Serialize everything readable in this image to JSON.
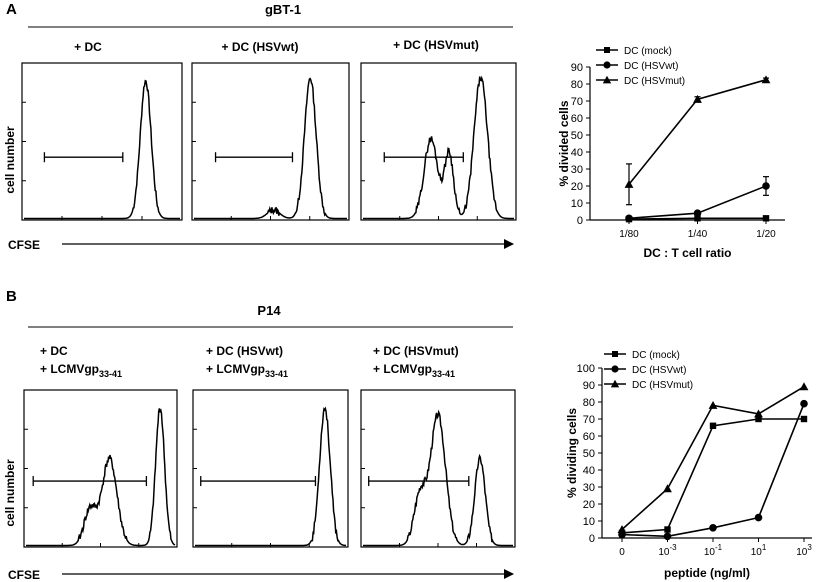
{
  "panels": {
    "a": {
      "letter": "A",
      "header": "gBT-1",
      "hist_labels": [
        "+ DC",
        "+ DC (HSVwt)",
        "+ DC (HSVmut)"
      ],
      "ylabel": "cell number",
      "xlabel": "CFSE"
    },
    "b": {
      "letter": "B",
      "header": "P14",
      "hist_labels": [
        {
          "line1": "+ DC",
          "line2": "+ LCMVgp",
          "sub": "33-41"
        },
        {
          "line1": "+ DC (HSVwt)",
          "line2": "+ LCMVgp",
          "sub": "33-41"
        },
        {
          "line1": "+ DC (HSVmut)",
          "line2": "+ LCMVgp",
          "sub": "33-41"
        }
      ],
      "ylabel": "cell number",
      "xlabel": "CFSE"
    }
  },
  "chart_data": [
    {
      "type": "line",
      "panel": "A",
      "xlabel": "DC : T cell ratio",
      "ylabel": "% divided cells",
      "categories": [
        "1/80",
        "1/40",
        "1/20"
      ],
      "ylim": [
        0,
        90
      ],
      "yticks": [
        0,
        10,
        20,
        30,
        40,
        50,
        60,
        70,
        80,
        90
      ],
      "series": [
        {
          "name": "DC (mock)",
          "marker": "square",
          "values": [
            0.5,
            1,
            1
          ]
        },
        {
          "name": "DC (HSVwt)",
          "marker": "circle",
          "values": [
            1,
            4,
            20
          ],
          "errors": [
            0,
            1,
            5.5
          ]
        },
        {
          "name": "DC (HSVmut)",
          "marker": "triangle",
          "values": [
            21,
            71,
            82.5
          ],
          "errors": [
            12,
            1.5,
            1
          ]
        }
      ]
    },
    {
      "type": "line",
      "panel": "B",
      "xlabel": "peptide (ng/ml)",
      "ylabel": "% dividing cells",
      "categories": [
        "0",
        "10-3",
        "10-1",
        "101",
        "103"
      ],
      "tick_labels": [
        {
          "base": "0",
          "exp": ""
        },
        {
          "base": "10",
          "exp": "-3"
        },
        {
          "base": "10",
          "exp": "-1"
        },
        {
          "base": "10",
          "exp": "1"
        },
        {
          "base": "10",
          "exp": "3"
        }
      ],
      "ylim": [
        0,
        100
      ],
      "yticks": [
        0,
        10,
        20,
        30,
        40,
        50,
        60,
        70,
        80,
        90,
        100
      ],
      "series": [
        {
          "name": "DC (mock)",
          "marker": "square",
          "values": [
            3,
            5,
            66,
            70,
            70
          ]
        },
        {
          "name": "DC (HSVwt)",
          "marker": "circle",
          "values": [
            2,
            1,
            6,
            12,
            79
          ]
        },
        {
          "name": "DC (HSVmut)",
          "marker": "triangle",
          "values": [
            5,
            29,
            78,
            73,
            89
          ]
        }
      ]
    }
  ]
}
